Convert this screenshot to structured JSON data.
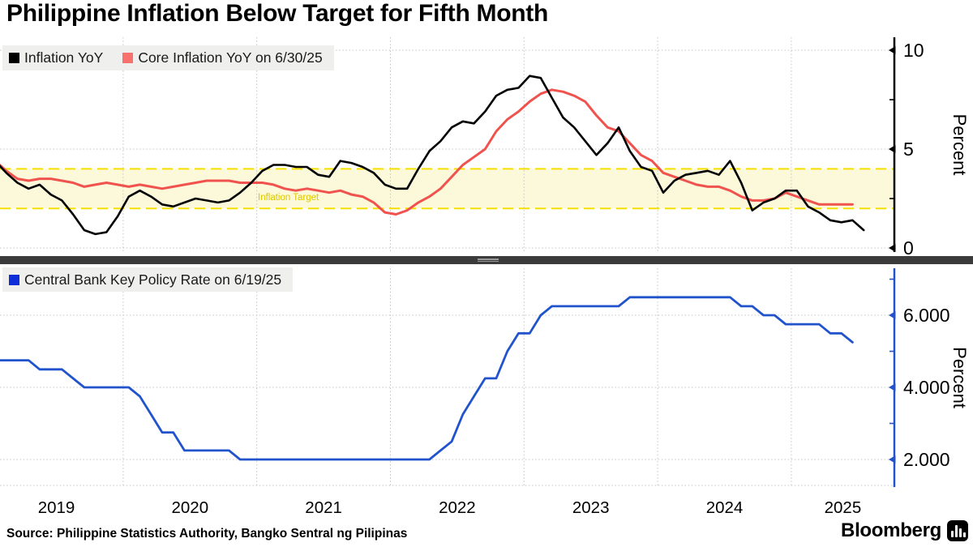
{
  "title": "Philippine Inflation Below Target for Fifth Month",
  "source": "Source: Philippine Statistics Authority, Bangko Sentral ng Pilipinas",
  "brand": "Bloomberg",
  "x_axis": {
    "year_labels": [
      "2019",
      "2020",
      "2021",
      "2022",
      "2023",
      "2024",
      "2025"
    ]
  },
  "chart_data": [
    {
      "type": "line",
      "panel": "top",
      "x_start": "2019-01",
      "frequency": "monthly",
      "ylabel": "Percent",
      "ylim": [
        -0.3,
        10.7
      ],
      "yticks": [
        0,
        5,
        10
      ],
      "ytick_labels": [
        "0",
        "5",
        "10"
      ],
      "minor_yticks": [
        2.5,
        7.5
      ],
      "grid": true,
      "legend_position": "top-left",
      "band": {
        "label": "Inflation Target",
        "from": 2,
        "to": 4,
        "fill": "#fcf8da",
        "edge": "#f6df00",
        "label_color": "#ddc700"
      },
      "series": [
        {
          "name": "Inflation YoY",
          "color": "#000000",
          "swatch": "#000000",
          "values": [
            4.4,
            3.8,
            3.3,
            3.0,
            3.2,
            2.7,
            2.4,
            1.7,
            0.9,
            0.7,
            0.8,
            1.6,
            2.6,
            2.9,
            2.6,
            2.2,
            2.1,
            2.3,
            2.5,
            2.4,
            2.3,
            2.4,
            2.8,
            3.3,
            3.9,
            4.2,
            4.2,
            4.1,
            4.1,
            3.7,
            3.6,
            4.4,
            4.3,
            4.1,
            3.8,
            3.2,
            3.0,
            3.0,
            4.0,
            4.9,
            5.4,
            6.1,
            6.4,
            6.3,
            6.9,
            7.7,
            8.0,
            8.1,
            8.7,
            8.6,
            7.6,
            6.6,
            6.1,
            5.4,
            4.7,
            5.3,
            6.1,
            4.9,
            4.1,
            3.9,
            2.8,
            3.4,
            3.7,
            3.8,
            3.9,
            3.7,
            4.4,
            3.3,
            1.9,
            2.3,
            2.5,
            2.9,
            2.9,
            2.1,
            1.8,
            1.4,
            1.3,
            1.4,
            0.9
          ]
        },
        {
          "name": "Core Inflation YoY on 6/30/25",
          "color": "#f0524e",
          "swatch": "#f9716d",
          "values": [
            4.4,
            3.9,
            3.5,
            3.4,
            3.5,
            3.5,
            3.4,
            3.3,
            3.1,
            3.2,
            3.3,
            3.2,
            3.1,
            3.2,
            3.1,
            3.0,
            3.1,
            3.2,
            3.3,
            3.4,
            3.4,
            3.4,
            3.3,
            3.3,
            3.3,
            3.2,
            3.0,
            2.9,
            3.0,
            2.9,
            2.8,
            2.9,
            2.7,
            2.6,
            2.3,
            1.8,
            1.7,
            1.9,
            2.3,
            2.6,
            3.0,
            3.6,
            4.2,
            4.6,
            5.0,
            5.9,
            6.5,
            6.9,
            7.4,
            7.8,
            8.0,
            7.9,
            7.7,
            7.4,
            6.7,
            6.1,
            5.9,
            5.3,
            4.7,
            4.4,
            3.8,
            3.6,
            3.4,
            3.2,
            3.1,
            3.1,
            2.9,
            2.6,
            2.4,
            2.4,
            2.5,
            2.8,
            2.6,
            2.4,
            2.2,
            2.2,
            2.2,
            2.2
          ]
        }
      ]
    },
    {
      "type": "line",
      "panel": "bottom",
      "x_start": "2019-01",
      "frequency": "monthly",
      "ylabel": "Percent",
      "ylim": [
        1.3,
        7.3
      ],
      "yticks": [
        2,
        4,
        6
      ],
      "ytick_labels": [
        "2.000",
        "4.000",
        "6.000"
      ],
      "minor_yticks": [
        3,
        5,
        7
      ],
      "grid": true,
      "legend_position": "top-left",
      "series": [
        {
          "name": "Central Bank Key Policy Rate on 6/19/25",
          "color": "#2153cd",
          "swatch": "#0d2ed8",
          "values": [
            4.75,
            4.75,
            4.75,
            4.75,
            4.5,
            4.5,
            4.5,
            4.25,
            4.0,
            4.0,
            4.0,
            4.0,
            4.0,
            3.75,
            3.25,
            2.75,
            2.75,
            2.25,
            2.25,
            2.25,
            2.25,
            2.25,
            2.0,
            2.0,
            2.0,
            2.0,
            2.0,
            2.0,
            2.0,
            2.0,
            2.0,
            2.0,
            2.0,
            2.0,
            2.0,
            2.0,
            2.0,
            2.0,
            2.0,
            2.0,
            2.25,
            2.5,
            3.25,
            3.75,
            4.25,
            4.25,
            5.0,
            5.5,
            5.5,
            6.0,
            6.25,
            6.25,
            6.25,
            6.25,
            6.25,
            6.25,
            6.25,
            6.5,
            6.5,
            6.5,
            6.5,
            6.5,
            6.5,
            6.5,
            6.5,
            6.5,
            6.5,
            6.25,
            6.25,
            6.0,
            6.0,
            5.75,
            5.75,
            5.75,
            5.75,
            5.5,
            5.5,
            5.25
          ]
        }
      ]
    }
  ]
}
